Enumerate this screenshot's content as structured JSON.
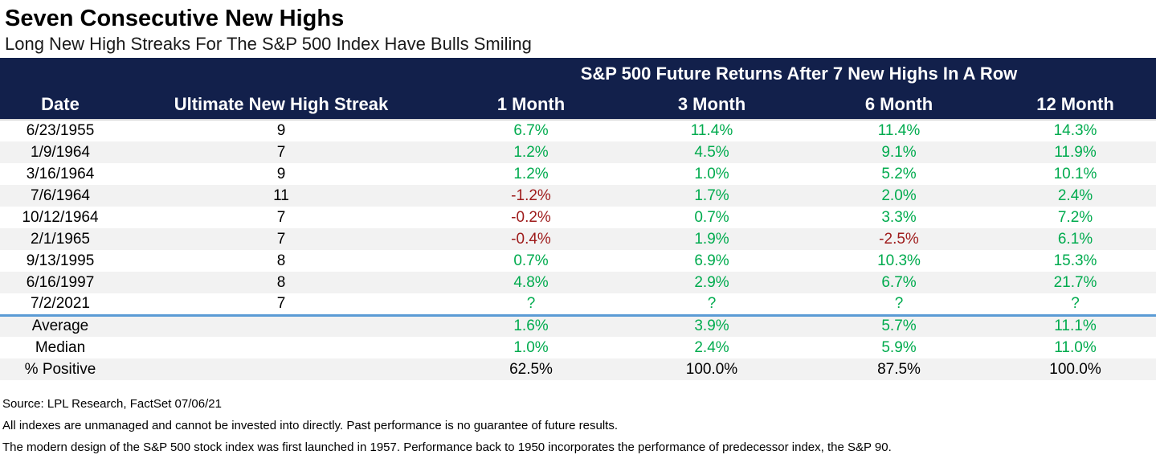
{
  "title": "Seven Consecutive New Highs",
  "subtitle": "Long New High Streaks For The S&P 500 Index Have Bulls Smiling",
  "chart_data": {
    "type": "table",
    "group_header": "S&P 500 Future Returns After 7 New Highs In A Row",
    "columns": [
      "Date",
      "Ultimate New High Streak",
      "1 Month",
      "3 Month",
      "6 Month",
      "12 Month"
    ],
    "rows": [
      {
        "date": "6/23/1955",
        "streak": "9",
        "returns": [
          "6.7%",
          "11.4%",
          "11.4%",
          "14.3%"
        ]
      },
      {
        "date": "1/9/1964",
        "streak": "7",
        "returns": [
          "1.2%",
          "4.5%",
          "9.1%",
          "11.9%"
        ]
      },
      {
        "date": "3/16/1964",
        "streak": "9",
        "returns": [
          "1.2%",
          "1.0%",
          "5.2%",
          "10.1%"
        ]
      },
      {
        "date": "7/6/1964",
        "streak": "11",
        "returns": [
          "-1.2%",
          "1.7%",
          "2.0%",
          "2.4%"
        ]
      },
      {
        "date": "10/12/1964",
        "streak": "7",
        "returns": [
          "-0.2%",
          "0.7%",
          "3.3%",
          "7.2%"
        ]
      },
      {
        "date": "2/1/1965",
        "streak": "7",
        "returns": [
          "-0.4%",
          "1.9%",
          "-2.5%",
          "6.1%"
        ]
      },
      {
        "date": "9/13/1995",
        "streak": "8",
        "returns": [
          "0.7%",
          "6.9%",
          "10.3%",
          "15.3%"
        ]
      },
      {
        "date": "6/16/1997",
        "streak": "8",
        "returns": [
          "4.8%",
          "2.9%",
          "6.7%",
          "21.7%"
        ]
      },
      {
        "date": "7/2/2021",
        "streak": "7",
        "returns": [
          "?",
          "?",
          "?",
          "?"
        ]
      }
    ],
    "summary": [
      {
        "label": "Average",
        "values": [
          "1.6%",
          "3.9%",
          "5.7%",
          "11.1%"
        ],
        "style": "signed"
      },
      {
        "label": "Median",
        "values": [
          "1.0%",
          "2.4%",
          "5.9%",
          "11.0%"
        ],
        "style": "signed"
      },
      {
        "label": "% Positive",
        "values": [
          "62.5%",
          "100.0%",
          "87.5%",
          "100.0%"
        ],
        "style": "plain"
      }
    ]
  },
  "footnotes": [
    "Source: LPL Research, FactSet 07/06/21",
    "All indexes are unmanaged and cannot be invested into directly. Past performance is no guarantee of future results.",
    "The modern design of the S&P 500 stock index was first launched in 1957. Performance back to 1950 incorporates the performance of predecessor index, the S&P 90."
  ],
  "colors": {
    "header_bg": "#12204B",
    "positive": "#00AB4E",
    "negative": "#9E1B1B",
    "stripe": "#F2F2F2",
    "separator_blue": "#5B9BD5"
  }
}
